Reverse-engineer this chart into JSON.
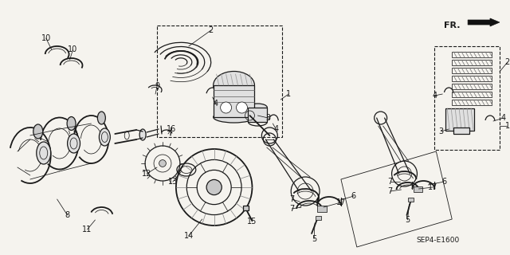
{
  "bg_color": "#f5f3ee",
  "fg_color": "#1a1a1a",
  "gray_fill": "#c8c8c8",
  "light_gray": "#e0e0e0",
  "dark_gray": "#888888",
  "sep_label": "SEP4-E1600",
  "label_fontsize": 7.0,
  "small_fontsize": 6.0,
  "lw_main": 0.9,
  "lw_thin": 0.55,
  "lw_thick": 1.3
}
